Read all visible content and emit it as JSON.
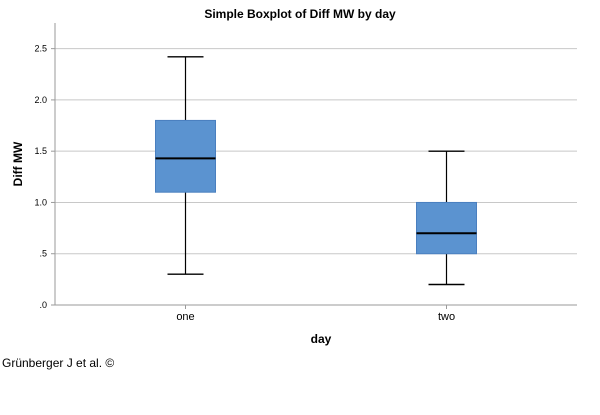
{
  "chart_data": {
    "type": "boxplot",
    "title": "Simple Boxplot of Diff MW by day",
    "xlabel": "day",
    "ylabel": "Diff MW",
    "ylim": [
      0,
      2.75
    ],
    "yticks": [
      0,
      0.5,
      1.0,
      1.5,
      2.0,
      2.5
    ],
    "ytick_labels": [
      ".0",
      ".5",
      "1.0",
      "1.5",
      "2.0",
      "2.5"
    ],
    "grid": true,
    "categories": [
      "one",
      "two"
    ],
    "boxes": [
      {
        "category": "one",
        "min": 0.3,
        "q1": 1.1,
        "median": 1.43,
        "q3": 1.8,
        "max": 2.42
      },
      {
        "category": "two",
        "min": 0.2,
        "q1": 0.5,
        "median": 0.7,
        "q3": 1.0,
        "max": 1.5
      }
    ],
    "box_color": "#5b93d0"
  },
  "credit": "Grünberger J et al. ©"
}
